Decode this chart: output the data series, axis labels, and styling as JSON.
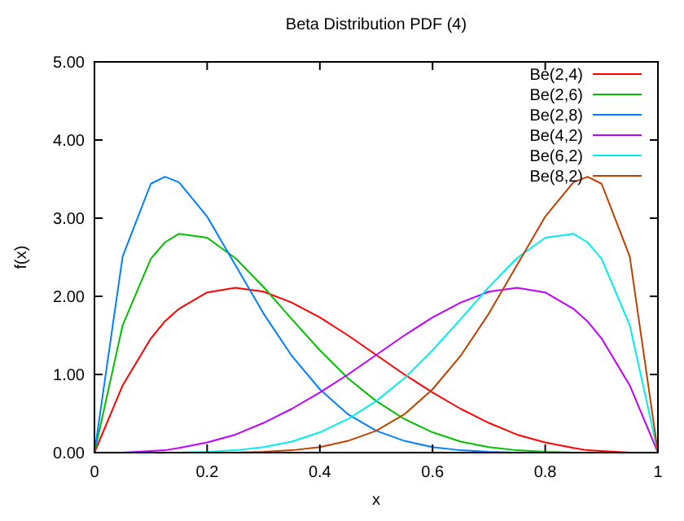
{
  "chart_data": {
    "type": "line",
    "title": "Beta Distribution PDF (4)",
    "xlabel": "x",
    "ylabel": "f(x)",
    "x": [
      0,
      0.05,
      0.1,
      0.125,
      0.15,
      0.2,
      0.25,
      0.3,
      0.35,
      0.4,
      0.45,
      0.5,
      0.55,
      0.6,
      0.65,
      0.7,
      0.75,
      0.8,
      0.85,
      0.875,
      0.9,
      0.95,
      1
    ],
    "series": [
      {
        "name": "Be(2,4)",
        "color": "#ff0000",
        "values": [
          0,
          0.86,
          1.46,
          1.68,
          1.84,
          2.05,
          2.11,
          2.06,
          1.92,
          1.73,
          1.5,
          1.25,
          1,
          0.77,
          0.56,
          0.38,
          0.23,
          0.13,
          0.06,
          0.03,
          0.02,
          0,
          0
        ]
      },
      {
        "name": "Be(2,6)",
        "color": "#00c000",
        "values": [
          0,
          1.63,
          2.48,
          2.69,
          2.8,
          2.75,
          2.49,
          2.12,
          1.71,
          1.31,
          0.95,
          0.66,
          0.43,
          0.26,
          0.14,
          0.07,
          0.03,
          0.01,
          0,
          null,
          null,
          null,
          null
        ]
      },
      {
        "name": "Be(2,8)",
        "color": "#0080ff",
        "values": [
          0,
          2.51,
          3.44,
          3.53,
          3.46,
          3.02,
          2.4,
          1.78,
          1.24,
          0.81,
          0.49,
          0.28,
          0.15,
          0.07,
          0.03,
          0.01,
          0,
          null,
          null,
          null,
          null,
          null,
          null
        ]
      },
      {
        "name": "Be(4,2)",
        "color": "#c000ff",
        "values": [
          null,
          0,
          0.02,
          0.03,
          0.06,
          0.13,
          0.23,
          0.38,
          0.56,
          0.77,
          1,
          1.25,
          1.5,
          1.73,
          1.92,
          2.06,
          2.11,
          2.05,
          1.84,
          1.68,
          1.46,
          0.86,
          0
        ]
      },
      {
        "name": "Be(6,2)",
        "color": "#00eeee",
        "values": [
          null,
          null,
          null,
          null,
          0,
          0.01,
          0.03,
          0.07,
          0.14,
          0.26,
          0.43,
          0.66,
          0.95,
          1.31,
          1.71,
          2.12,
          2.49,
          2.75,
          2.8,
          2.69,
          2.48,
          1.63,
          0
        ]
      },
      {
        "name": "Be(8,2)",
        "color": "#c04000",
        "values": [
          null,
          null,
          null,
          null,
          null,
          null,
          0,
          0.01,
          0.03,
          0.07,
          0.15,
          0.28,
          0.49,
          0.81,
          1.24,
          1.78,
          2.4,
          3.02,
          3.46,
          3.53,
          3.44,
          2.51,
          0
        ]
      }
    ],
    "xlim": [
      0,
      1
    ],
    "ylim": [
      0,
      5
    ],
    "xticks": [
      0,
      {
        "value": 0.2,
        "label": "0.2"
      },
      {
        "value": 0.4,
        "label": "0.4"
      },
      {
        "value": 0.6,
        "label": "0.6"
      },
      {
        "value": 0.8,
        "label": "0.8"
      },
      1
    ],
    "yticks": [
      {
        "value": 0,
        "label": "0.00"
      },
      {
        "value": 1,
        "label": "1.00"
      },
      {
        "value": 2,
        "label": "2.00"
      },
      {
        "value": 3,
        "label": "3.00"
      },
      {
        "value": 4,
        "label": "4.00"
      },
      {
        "value": 5,
        "label": "5.00"
      }
    ],
    "legend": "top right",
    "grid": false,
    "line_style": "solid"
  }
}
